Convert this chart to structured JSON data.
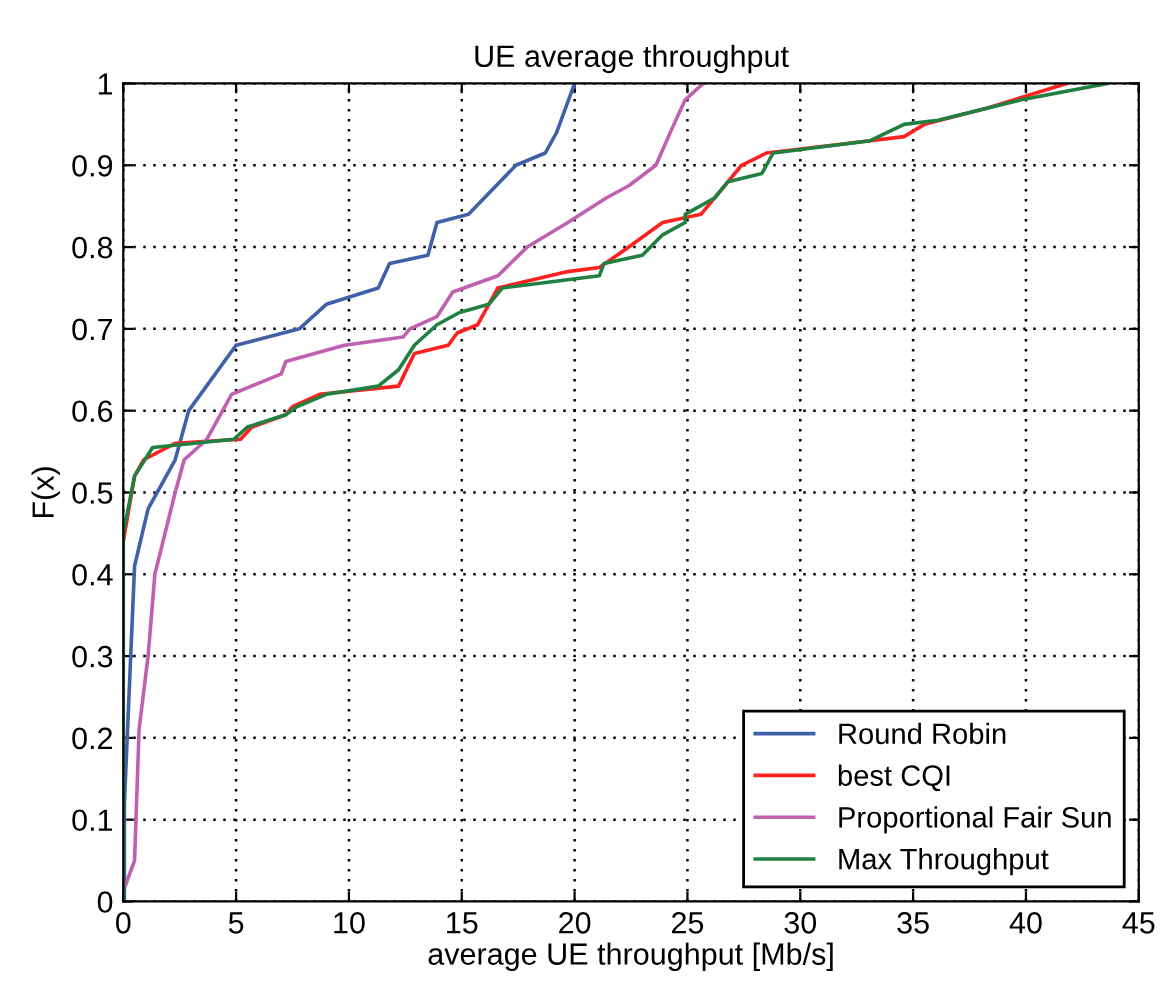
{
  "chart_data": {
    "type": "line",
    "title": "UE average throughput",
    "xlabel": "average UE throughput [Mb/s]",
    "ylabel": "F(x)",
    "xlim": [
      0,
      45
    ],
    "ylim": [
      0,
      1
    ],
    "xticks": [
      0,
      5,
      10,
      15,
      20,
      25,
      30,
      35,
      40,
      45
    ],
    "yticks": [
      0,
      0.1,
      0.2,
      0.3,
      0.4,
      0.5,
      0.6,
      0.7,
      0.8,
      0.9,
      1
    ],
    "grid": true,
    "legend": "bottom right",
    "line_style": "solid",
    "marker": "none",
    "series": [
      {
        "name": "Round Robin",
        "color": "#4060a8",
        "x": [
          0.05,
          0.05,
          0.5,
          1.1,
          2.3,
          2.9,
          5.0,
          7.8,
          9.0,
          11.3,
          11.8,
          13.5,
          13.9,
          15.3,
          17.4,
          18.7,
          19.2,
          20.0
        ],
        "values": [
          0,
          0.12,
          0.41,
          0.48,
          0.54,
          0.6,
          0.68,
          0.7,
          0.73,
          0.75,
          0.78,
          0.79,
          0.83,
          0.84,
          0.9,
          0.915,
          0.94,
          1.0
        ]
      },
      {
        "name": "best CQI",
        "color": "#ff2020",
        "x": [
          0,
          0.5,
          0.9,
          2.3,
          5.2,
          5.7,
          7.2,
          7.5,
          8.7,
          12.2,
          12.9,
          14.4,
          14.8,
          15.7,
          16.6,
          19.7,
          21.1,
          22.4,
          23.9,
          25.6,
          26.8,
          27.4,
          28.5,
          33.1,
          34.6,
          35.5,
          38.3,
          41.8
        ],
        "values": [
          0.44,
          0.52,
          0.54,
          0.56,
          0.565,
          0.58,
          0.595,
          0.605,
          0.62,
          0.63,
          0.67,
          0.68,
          0.695,
          0.705,
          0.75,
          0.77,
          0.775,
          0.8,
          0.83,
          0.84,
          0.88,
          0.9,
          0.915,
          0.93,
          0.935,
          0.95,
          0.97,
          1.0
        ]
      },
      {
        "name": "Proportional Fair Sun",
        "color": "#c060b0",
        "x": [
          0.1,
          0.5,
          0.7,
          1.1,
          1.4,
          2.3,
          2.7,
          3.7,
          4.8,
          7.0,
          7.2,
          9.8,
          12.4,
          12.7,
          13.9,
          14.6,
          16.6,
          17.9,
          19.7,
          21.4,
          22.4,
          23.6,
          24.4,
          24.9,
          25.7
        ],
        "values": [
          0.02,
          0.05,
          0.21,
          0.3,
          0.4,
          0.5,
          0.54,
          0.565,
          0.62,
          0.645,
          0.66,
          0.68,
          0.69,
          0.7,
          0.715,
          0.745,
          0.765,
          0.8,
          0.83,
          0.86,
          0.875,
          0.9,
          0.95,
          0.98,
          1.0
        ]
      },
      {
        "name": "Max Throughput",
        "color": "#208040",
        "x": [
          0,
          0,
          0.5,
          1.3,
          4.9,
          5.5,
          7.2,
          7.7,
          9.0,
          11.3,
          12.2,
          12.9,
          13.9,
          14.9,
          16.2,
          16.8,
          21.1,
          21.3,
          23.0,
          23.9,
          24.9,
          24.9,
          26.2,
          26.8,
          28.3,
          28.8,
          33.1,
          34.6,
          36.1,
          39.8,
          43.6
        ],
        "values": [
          0,
          0.45,
          0.52,
          0.555,
          0.565,
          0.58,
          0.595,
          0.605,
          0.62,
          0.63,
          0.65,
          0.68,
          0.705,
          0.72,
          0.73,
          0.75,
          0.765,
          0.78,
          0.79,
          0.815,
          0.83,
          0.84,
          0.86,
          0.88,
          0.89,
          0.915,
          0.93,
          0.95,
          0.955,
          0.98,
          1.0
        ]
      }
    ]
  }
}
